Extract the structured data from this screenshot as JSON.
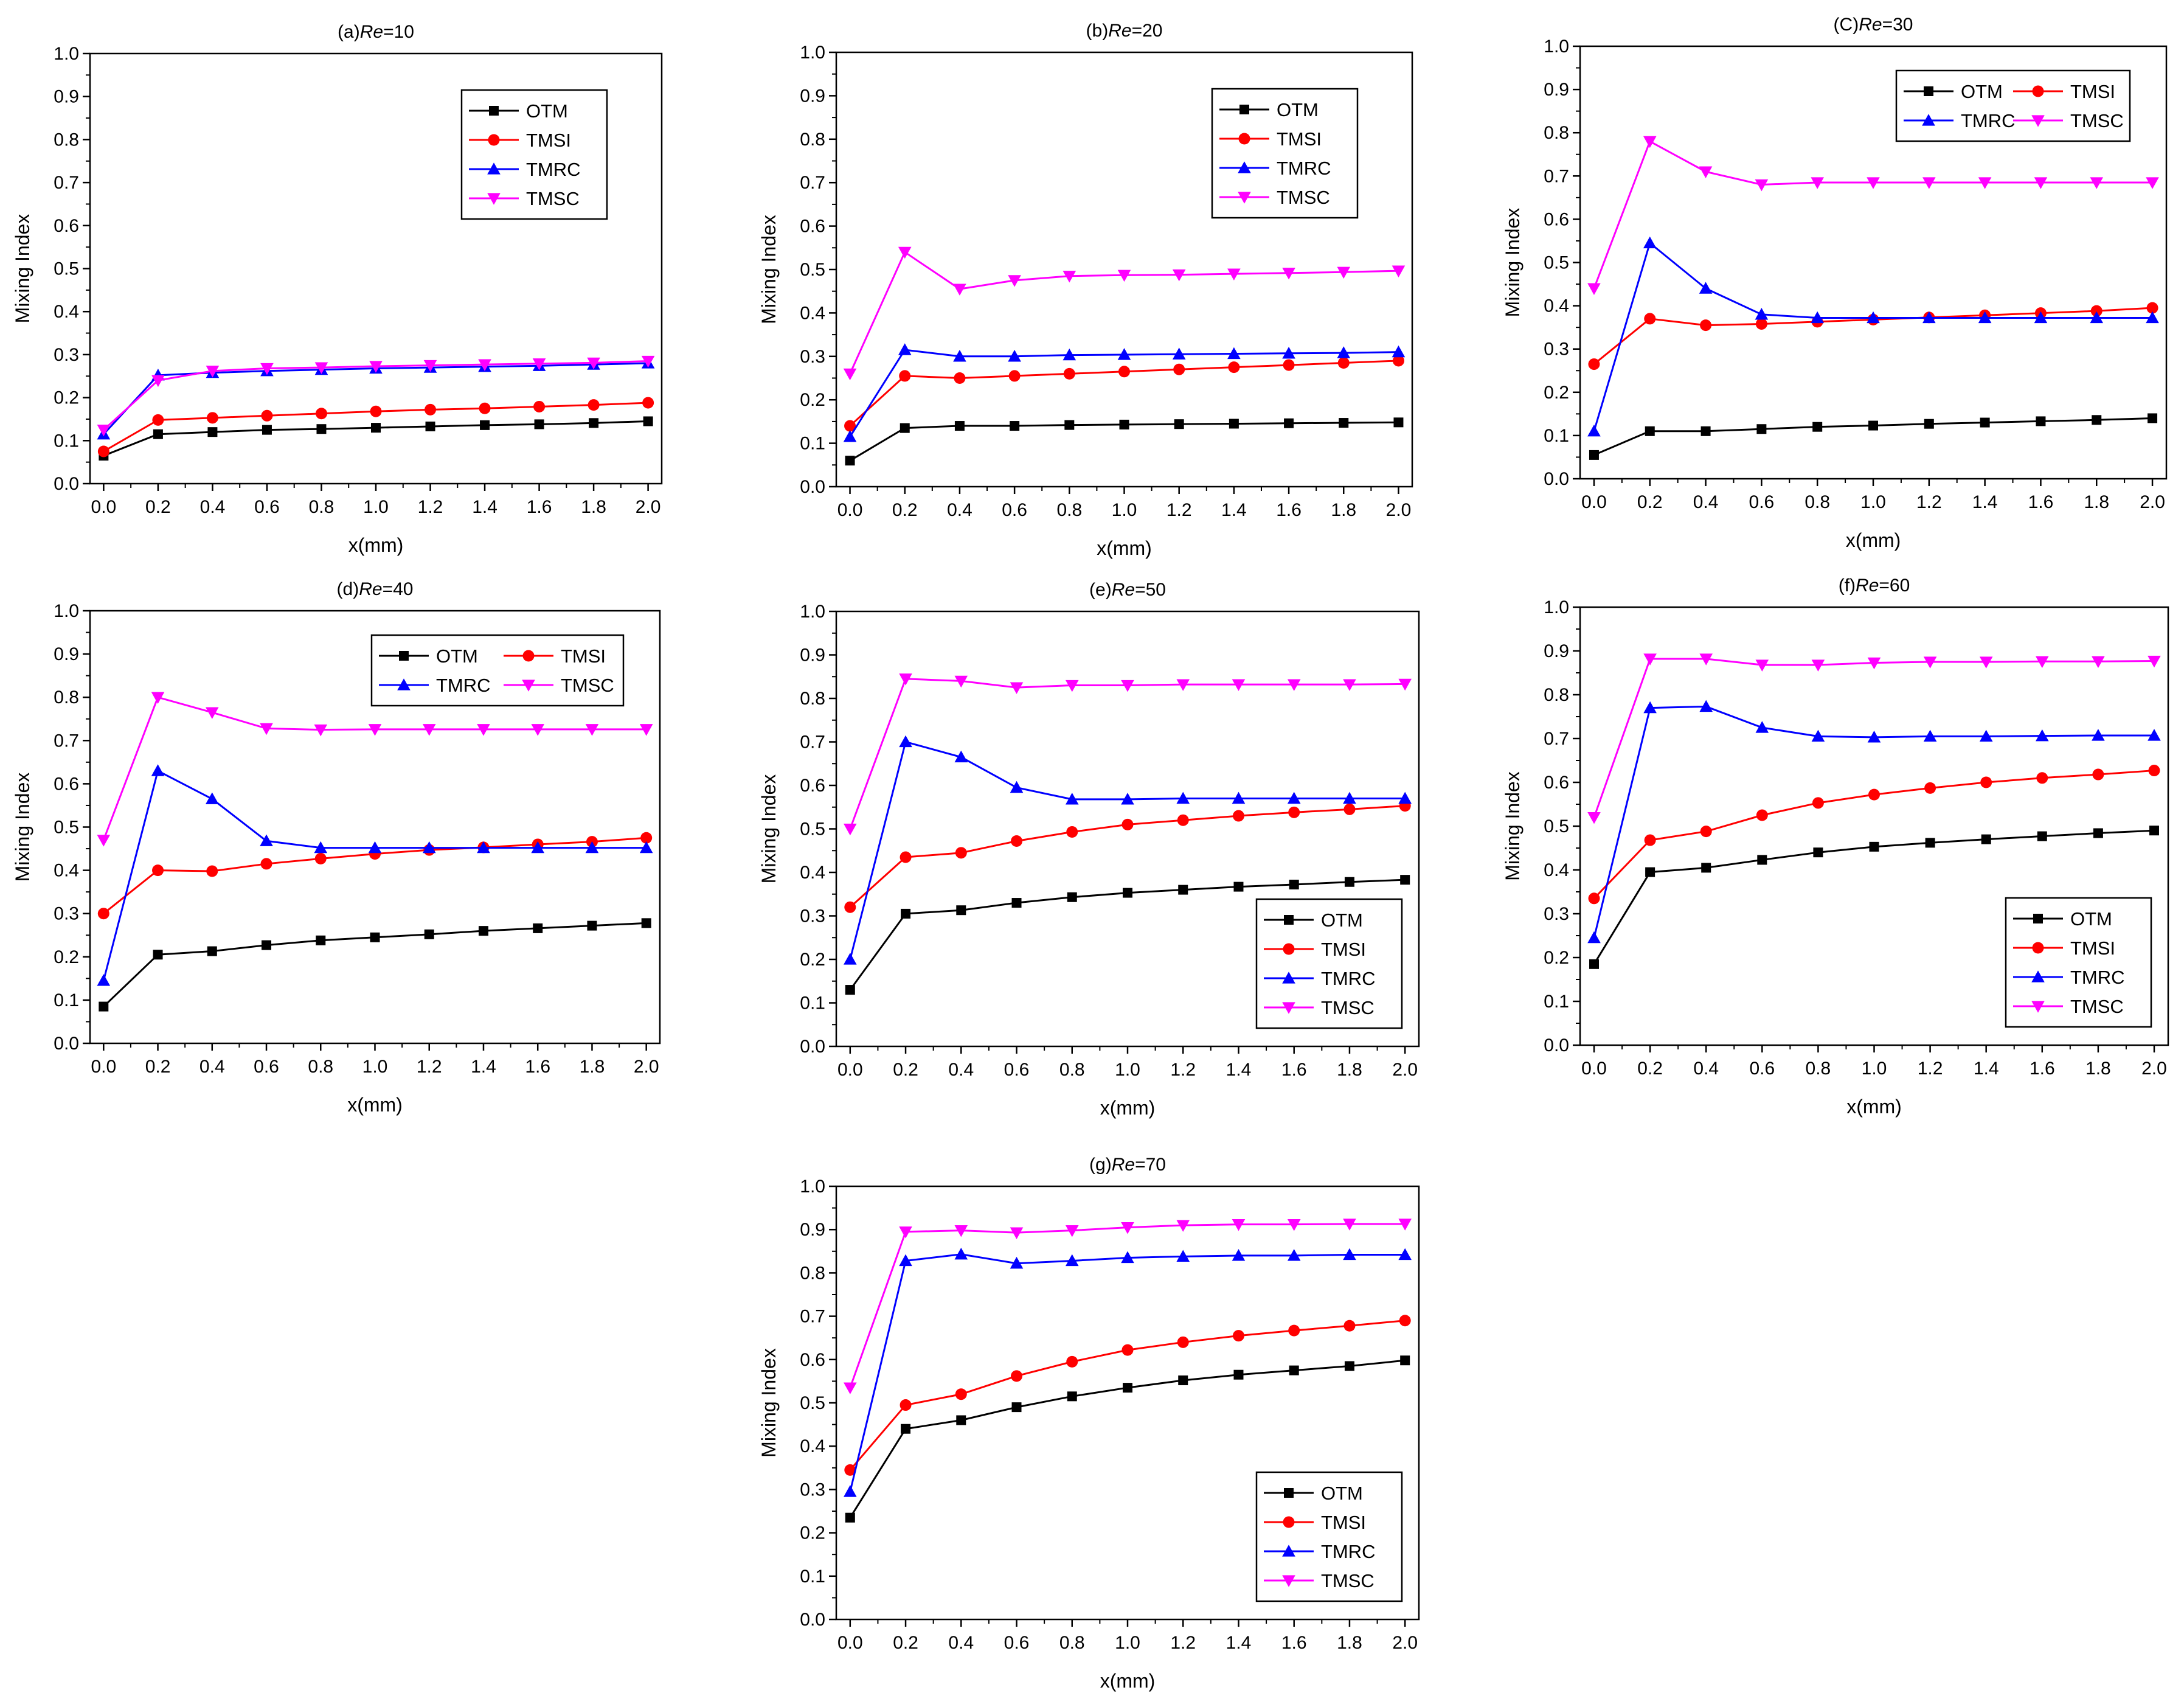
{
  "figure": {
    "xlabel": "x(mm)",
    "ylabel": "Mixing Index",
    "colors": {
      "OTM": "#000000",
      "TMSI": "#ff0000",
      "TMRC": "#0000ff",
      "TMSC": "#ff00ff"
    },
    "markers": {
      "OTM": "square",
      "TMSI": "circle",
      "TMRC": "triangle-up",
      "TMSC": "triangle-down"
    }
  },
  "chart_data": [
    {
      "type": "line",
      "title_prefix": "(a)",
      "title_italic": "Re",
      "title_suffix": "=10",
      "x": [
        0.0,
        0.2,
        0.4,
        0.6,
        0.8,
        1.0,
        1.2,
        1.4,
        1.6,
        1.8,
        2.0
      ],
      "xticks": [
        "0.0",
        "0.2",
        "0.4",
        "0.6",
        "0.8",
        "1.0",
        "1.2",
        "1.4",
        "1.6",
        "1.8",
        "2.0"
      ],
      "yticks": [
        "0.0",
        "0.1",
        "0.2",
        "0.3",
        "0.4",
        "0.5",
        "0.6",
        "0.7",
        "0.8",
        "0.9",
        "1.0"
      ],
      "xlim": [
        -0.05,
        2.05
      ],
      "ylim": [
        0,
        1.0
      ],
      "legend": {
        "placement": "upper-right",
        "columns": 1
      },
      "series": [
        {
          "name": "OTM",
          "values": [
            0.065,
            0.115,
            0.12,
            0.125,
            0.127,
            0.13,
            0.133,
            0.136,
            0.138,
            0.141,
            0.145
          ]
        },
        {
          "name": "TMSI",
          "values": [
            0.075,
            0.148,
            0.153,
            0.158,
            0.163,
            0.168,
            0.172,
            0.175,
            0.179,
            0.183,
            0.188
          ]
        },
        {
          "name": "TMRC",
          "values": [
            0.115,
            0.252,
            0.258,
            0.262,
            0.265,
            0.268,
            0.27,
            0.272,
            0.274,
            0.277,
            0.28
          ]
        },
        {
          "name": "TMSC",
          "values": [
            0.125,
            0.24,
            0.262,
            0.268,
            0.27,
            0.273,
            0.275,
            0.277,
            0.279,
            0.281,
            0.285
          ]
        }
      ]
    },
    {
      "type": "line",
      "title_prefix": "(b)",
      "title_italic": "Re",
      "title_suffix": "=20",
      "x": [
        0.0,
        0.2,
        0.4,
        0.6,
        0.8,
        1.0,
        1.2,
        1.4,
        1.6,
        1.8,
        2.0
      ],
      "xticks": [
        "0.0",
        "0.2",
        "0.4",
        "0.6",
        "0.8",
        "1.0",
        "1.2",
        "1.4",
        "1.6",
        "1.8",
        "2.0"
      ],
      "yticks": [
        "0.0",
        "0.1",
        "0.2",
        "0.3",
        "0.4",
        "0.5",
        "0.6",
        "0.7",
        "0.8",
        "0.9",
        "1.0"
      ],
      "xlim": [
        -0.05,
        2.05
      ],
      "ylim": [
        0,
        1.0
      ],
      "legend": {
        "placement": "upper-right",
        "columns": 1
      },
      "series": [
        {
          "name": "OTM",
          "values": [
            0.06,
            0.135,
            0.14,
            0.14,
            0.142,
            0.143,
            0.144,
            0.145,
            0.146,
            0.147,
            0.148
          ]
        },
        {
          "name": "TMSI",
          "values": [
            0.14,
            0.255,
            0.25,
            0.255,
            0.26,
            0.265,
            0.27,
            0.275,
            0.28,
            0.285,
            0.29
          ]
        },
        {
          "name": "TMRC",
          "values": [
            0.115,
            0.315,
            0.3,
            0.3,
            0.303,
            0.304,
            0.305,
            0.306,
            0.307,
            0.308,
            0.31
          ]
        },
        {
          "name": "TMSC",
          "values": [
            0.26,
            0.54,
            0.455,
            0.475,
            0.485,
            0.487,
            0.488,
            0.49,
            0.492,
            0.494,
            0.497
          ]
        }
      ]
    },
    {
      "type": "line",
      "title_prefix": "(C)",
      "title_italic": "Re",
      "title_suffix": "=30",
      "x": [
        0.0,
        0.2,
        0.4,
        0.6,
        0.8,
        1.0,
        1.2,
        1.4,
        1.6,
        1.8,
        2.0
      ],
      "xticks": [
        "0.0",
        "0.2",
        "0.4",
        "0.6",
        "0.8",
        "1.0",
        "1.2",
        "1.4",
        "1.6",
        "1.8",
        "2.0"
      ],
      "yticks": [
        "0.0",
        "0.1",
        "0.2",
        "0.3",
        "0.4",
        "0.5",
        "0.6",
        "0.7",
        "0.8",
        "0.9",
        "1.0"
      ],
      "xlim": [
        -0.05,
        2.05
      ],
      "ylim": [
        0,
        1.0
      ],
      "legend": {
        "placement": "upper-right",
        "columns": 2
      },
      "series": [
        {
          "name": "OTM",
          "values": [
            0.055,
            0.11,
            0.11,
            0.115,
            0.12,
            0.123,
            0.127,
            0.13,
            0.133,
            0.136,
            0.14
          ]
        },
        {
          "name": "TMSI",
          "values": [
            0.265,
            0.37,
            0.355,
            0.358,
            0.363,
            0.368,
            0.373,
            0.378,
            0.383,
            0.388,
            0.395
          ]
        },
        {
          "name": "TMRC",
          "values": [
            0.11,
            0.545,
            0.44,
            0.38,
            0.372,
            0.372,
            0.372,
            0.372,
            0.372,
            0.372,
            0.372
          ]
        },
        {
          "name": "TMSC",
          "values": [
            0.44,
            0.78,
            0.71,
            0.68,
            0.685,
            0.685,
            0.685,
            0.685,
            0.685,
            0.685,
            0.685
          ]
        }
      ]
    },
    {
      "type": "line",
      "title_prefix": "(d)",
      "title_italic": "Re",
      "title_suffix": "=40",
      "x": [
        0.0,
        0.2,
        0.4,
        0.6,
        0.8,
        1.0,
        1.2,
        1.4,
        1.6,
        1.8,
        2.0
      ],
      "xticks": [
        "0.0",
        "0.2",
        "0.4",
        "0.6",
        "0.8",
        "1.0",
        "1.2",
        "1.4",
        "1.6",
        "1.8",
        "2.0"
      ],
      "yticks": [
        "0.0",
        "0.1",
        "0.2",
        "0.3",
        "0.4",
        "0.5",
        "0.6",
        "0.7",
        "0.8",
        "0.9",
        "1.0"
      ],
      "xlim": [
        -0.05,
        2.05
      ],
      "ylim": [
        0,
        1.0
      ],
      "legend": {
        "placement": "upper-right",
        "columns": 2
      },
      "series": [
        {
          "name": "OTM",
          "values": [
            0.085,
            0.205,
            0.213,
            0.227,
            0.238,
            0.245,
            0.252,
            0.26,
            0.266,
            0.272,
            0.278
          ]
        },
        {
          "name": "TMSI",
          "values": [
            0.3,
            0.4,
            0.398,
            0.415,
            0.427,
            0.438,
            0.447,
            0.453,
            0.46,
            0.466,
            0.475
          ]
        },
        {
          "name": "TMRC",
          "values": [
            0.145,
            0.63,
            0.565,
            0.468,
            0.452,
            0.452,
            0.452,
            0.452,
            0.452,
            0.452,
            0.452
          ]
        },
        {
          "name": "TMSC",
          "values": [
            0.47,
            0.8,
            0.765,
            0.728,
            0.725,
            0.726,
            0.726,
            0.726,
            0.726,
            0.726,
            0.726
          ]
        }
      ]
    },
    {
      "type": "line",
      "title_prefix": "(e)",
      "title_italic": "Re",
      "title_suffix": "=50",
      "x": [
        0.0,
        0.2,
        0.4,
        0.6,
        0.8,
        1.0,
        1.2,
        1.4,
        1.6,
        1.8,
        2.0
      ],
      "xticks": [
        "0.0",
        "0.2",
        "0.4",
        "0.6",
        "0.8",
        "1.0",
        "1.2",
        "1.4",
        "1.6",
        "1.8",
        "2.0"
      ],
      "yticks": [
        "0.0",
        "0.1",
        "0.2",
        "0.3",
        "0.4",
        "0.5",
        "0.6",
        "0.7",
        "0.8",
        "0.9",
        "1.0"
      ],
      "xlim": [
        -0.05,
        2.05
      ],
      "ylim": [
        0,
        1.0
      ],
      "legend": {
        "placement": "lower-right",
        "columns": 1
      },
      "series": [
        {
          "name": "OTM",
          "values": [
            0.13,
            0.305,
            0.313,
            0.33,
            0.343,
            0.353,
            0.36,
            0.367,
            0.372,
            0.378,
            0.383
          ]
        },
        {
          "name": "TMSI",
          "values": [
            0.32,
            0.435,
            0.445,
            0.472,
            0.493,
            0.51,
            0.52,
            0.53,
            0.538,
            0.545,
            0.553
          ]
        },
        {
          "name": "TMRC",
          "values": [
            0.2,
            0.7,
            0.665,
            0.595,
            0.568,
            0.568,
            0.57,
            0.57,
            0.57,
            0.57,
            0.57
          ]
        },
        {
          "name": "TMSC",
          "values": [
            0.5,
            0.845,
            0.84,
            0.825,
            0.83,
            0.83,
            0.832,
            0.832,
            0.832,
            0.832,
            0.833
          ]
        }
      ]
    },
    {
      "type": "line",
      "title_prefix": "(f)",
      "title_italic": "Re",
      "title_suffix": "=60",
      "x": [
        0.0,
        0.2,
        0.4,
        0.6,
        0.8,
        1.0,
        1.2,
        1.4,
        1.6,
        1.8,
        2.0
      ],
      "xticks": [
        "0.0",
        "0.2",
        "0.4",
        "0.6",
        "0.8",
        "1.0",
        "1.2",
        "1.4",
        "1.6",
        "1.8",
        "2.0"
      ],
      "yticks": [
        "0.0",
        "0.1",
        "0.2",
        "0.3",
        "0.4",
        "0.5",
        "0.6",
        "0.7",
        "0.8",
        "0.9",
        "1.0"
      ],
      "xlim": [
        -0.05,
        2.05
      ],
      "ylim": [
        0,
        1.0
      ],
      "legend": {
        "placement": "lower-right",
        "columns": 1
      },
      "series": [
        {
          "name": "OTM",
          "values": [
            0.185,
            0.395,
            0.405,
            0.423,
            0.44,
            0.453,
            0.462,
            0.47,
            0.477,
            0.484,
            0.49
          ]
        },
        {
          "name": "TMSI",
          "values": [
            0.335,
            0.468,
            0.488,
            0.525,
            0.553,
            0.572,
            0.587,
            0.6,
            0.61,
            0.618,
            0.627
          ]
        },
        {
          "name": "TMRC",
          "values": [
            0.245,
            0.77,
            0.773,
            0.725,
            0.705,
            0.703,
            0.705,
            0.705,
            0.706,
            0.707,
            0.707
          ]
        },
        {
          "name": "TMSC",
          "values": [
            0.52,
            0.882,
            0.882,
            0.868,
            0.868,
            0.873,
            0.875,
            0.875,
            0.876,
            0.876,
            0.877
          ]
        }
      ]
    },
    {
      "type": "line",
      "title_prefix": "(g)",
      "title_italic": "Re",
      "title_suffix": "=70",
      "x": [
        0.0,
        0.2,
        0.4,
        0.6,
        0.8,
        1.0,
        1.2,
        1.4,
        1.6,
        1.8,
        2.0
      ],
      "xticks": [
        "0.0",
        "0.2",
        "0.4",
        "0.6",
        "0.8",
        "1.0",
        "1.2",
        "1.4",
        "1.6",
        "1.8",
        "2.0"
      ],
      "yticks": [
        "0.0",
        "0.1",
        "0.2",
        "0.3",
        "0.4",
        "0.5",
        "0.6",
        "0.7",
        "0.8",
        "0.9",
        "1.0"
      ],
      "xlim": [
        -0.05,
        2.05
      ],
      "ylim": [
        0,
        1.0
      ],
      "legend": {
        "placement": "lower-right",
        "columns": 1
      },
      "series": [
        {
          "name": "OTM",
          "values": [
            0.235,
            0.44,
            0.46,
            0.49,
            0.515,
            0.535,
            0.552,
            0.565,
            0.575,
            0.585,
            0.598
          ]
        },
        {
          "name": "TMSI",
          "values": [
            0.345,
            0.495,
            0.52,
            0.562,
            0.595,
            0.622,
            0.64,
            0.655,
            0.667,
            0.678,
            0.69
          ]
        },
        {
          "name": "TMRC",
          "values": [
            0.295,
            0.828,
            0.843,
            0.822,
            0.828,
            0.835,
            0.838,
            0.84,
            0.84,
            0.842,
            0.842
          ]
        },
        {
          "name": "TMSC",
          "values": [
            0.535,
            0.895,
            0.898,
            0.893,
            0.898,
            0.905,
            0.91,
            0.912,
            0.912,
            0.913,
            0.913
          ]
        }
      ]
    }
  ]
}
